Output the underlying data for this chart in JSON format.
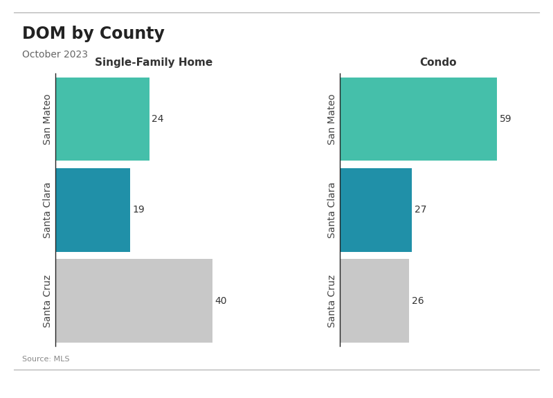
{
  "title": "DOM by County",
  "subtitle": "October 2023",
  "source": "Source: MLS",
  "categories": [
    "San Mateo",
    "Santa Clara",
    "Santa Cruz"
  ],
  "sfh_values": [
    24,
    19,
    40
  ],
  "condo_values": [
    59,
    27,
    26
  ],
  "sfh_colors": [
    "#45bfaa",
    "#2090a8",
    "#c8c8c8"
  ],
  "condo_colors": [
    "#45bfaa",
    "#2090a8",
    "#c8c8c8"
  ],
  "sfh_label": "Single-Family Home",
  "condo_label": "Condo",
  "title_fontsize": 17,
  "subtitle_fontsize": 10,
  "label_fontsize": 10,
  "value_fontsize": 10,
  "source_fontsize": 8,
  "bar_height": 0.92,
  "background_color": "#ffffff"
}
